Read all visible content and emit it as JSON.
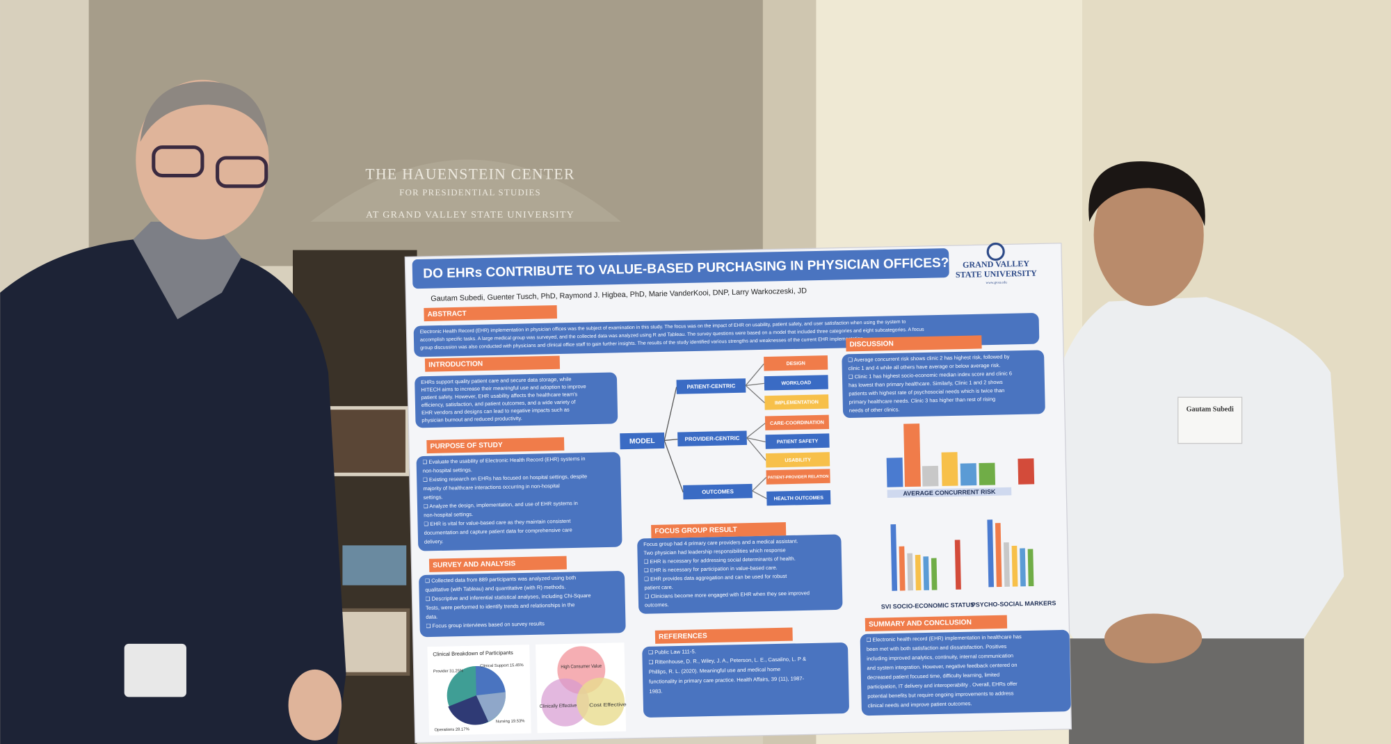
{
  "sign": [
    "THE HAUENSTEIN CENTER",
    "FOR PRESIDENTIAL STUDIES",
    "AT GRAND VALLEY STATE UNIVERSITY"
  ],
  "poster": {
    "title": "DO EHRs CONTRIBUTE TO VALUE-BASED PURCHASING IN PHYSICIAN OFFICES?",
    "logo": [
      "GRAND VALLEY",
      "STATE UNIVERSITY",
      "www.gvsu.edu"
    ],
    "authors": "Gautam Subedi, Guenter Tusch, PhD, Raymond J. Higbea, PhD, Marie VanderKooi, DNP, Larry Warkoczeski, JD",
    "sections": [
      {
        "heading": "ABSTRACT",
        "lines": [
          "Electronic Health Record (EHR) implementation in physician offices was the subject of examination in this study. The focus was on the impact of EHR on usability, patient safety, and user satisfaction when using the system to",
          "accomplish specific tasks. A large medical group was surveyed, and the collected data was analyzed using R and Tableau. The survey questions were based on a model that included three categories and eight subcategories. A focus",
          "group discussion was also conducted with physicians and clinical office staff to gain further insights. The results of the study identified various strengths and weaknesses of the current EHR implementation."
        ]
      },
      {
        "heading": "INTRODUCTION",
        "lines": [
          "EHRs support quality patient care and secure data storage, while",
          "HITECH aims to increase their meaningful use and adoption to improve",
          "patient safety. However, EHR usability affects the healthcare team's",
          "efficiency, satisfaction, and patient outcomes, and a wide variety of",
          "EHR vendors and designs can lead to negative impacts such as",
          "physician burnout and reduced productivity."
        ]
      },
      {
        "heading": "PURPOSE OF STUDY",
        "lines": [
          "❑ Evaluate the usability of Electronic Health Record (EHR) systems in",
          "non-hospital settings.",
          "❑ Existing research on EHRs has focused on hospital settings, despite",
          "majority of healthcare interactions occurring in non-hospital",
          "settings.",
          "❑ Analyze the design, implementation, and use of EHR systems in",
          "non-hospital settings.",
          "❑ EHR is vital for value-based care as they maintain consistent",
          "documentation and capture patient data for comprehensive care",
          "delivery."
        ]
      },
      {
        "heading": "SURVEY AND ANALYSIS",
        "lines": [
          "❑ Collected data from 889 participants was analyzed using both",
          "qualitative (with Tableau) and quantitative (with R) methods.",
          "❑ Descriptive and inferential statistical analyses, including Chi-Square",
          "Tests, were performed to identify trends and relationships in the",
          "data.",
          "❑ Focus group interviews based on survey results"
        ]
      },
      {
        "heading": "FOCUS GROUP RESULT",
        "lines": [
          "Focus group had 4 primary care providers and a medical assistant.",
          "Two physician had leadership responsibilities which response",
          "❑ EHR is necessary for addressing social determinants of health.",
          "❑ EHR is necessary for participation in value-based care.",
          "❑ EHR provides data aggregation and can be used for robust",
          "patient care.",
          "❑ Clinicians become more engaged with EHR when they see improved",
          "outcomes."
        ]
      },
      {
        "heading": "REFERENCES",
        "lines": [
          "❑ Public Law 111-5.",
          "❑ Rittenhouse, D. R., Wiley, J. A., Peterson, L. E., Casalino, L. P &",
          "Phillips, R. L. (2020). Meaningful use and medical home",
          "functionality in primary care practice. Health Affairs, 39 (11), 1987-",
          "1983."
        ]
      },
      {
        "heading": "DISCUSSION",
        "lines": [
          "❑ Average concurrent risk shows clinic 2 has highest risk, followed by",
          "clinic 1 and 4 while all others have average or below average risk.",
          "❑ Clinic 1 has highest socio-economic median index score and clinic 6",
          "has lowest than primary healthcare. Similarly, Clinic 1 and 2 shows",
          "patients with highest rate of psychosocial needs which is twice than",
          "primary healthcare needs. Clinic 3 has higher than rest of rising",
          "needs of other clinics."
        ]
      },
      {
        "heading": "SUMMARY AND CONCLUSION",
        "lines": [
          "❑ Electronic health record (EHR) implementation in healthcare has",
          "been met with both satisfaction and dissatisfaction. Positives",
          "including improved analytics, continuity, internal communication",
          "and system integration. However, negative feedback centered on",
          "decreased patient focused time, difficulty learning, limited",
          "participation, IT delivery and interoperability . Overall, EHRs offer",
          "potential benefits but require ongoing improvements to address",
          "clinical needs and improve patient outcomes."
        ]
      }
    ],
    "model": {
      "center": "MODEL",
      "branches": [
        {
          "label": "PATIENT-CENTRIC",
          "items": [
            "DESIGN",
            "WORKLOAD",
            "IMPLEMENTATION"
          ]
        },
        {
          "label": "PROVIDER-CENTRIC",
          "items": [
            "CARE-COORDINATION",
            "PATIENT SAFETY",
            "USABILITY"
          ]
        },
        {
          "label": "OUTCOMES",
          "items": [
            "PATIENT-PROVIDER RELATION",
            "HEALTH OUTCOMES"
          ]
        }
      ]
    },
    "charts": [
      "AVERAGE CONCURRENT RISK",
      "SVI SOCIO-ECONOMIC STATUS",
      "PSYCHO-SOCIAL MARKERS"
    ],
    "pie": {
      "title": "Clinical Breakdown of Participants",
      "labels": [
        "Provider 31.25%",
        "Clinical Support 15.45%",
        "Nursing 19.53%",
        "Operations 28.17%"
      ]
    },
    "venn": [
      "High Consumer Value",
      "Clinically Effective",
      "Cost Effective"
    ]
  },
  "badge": "Gautam Subedi"
}
